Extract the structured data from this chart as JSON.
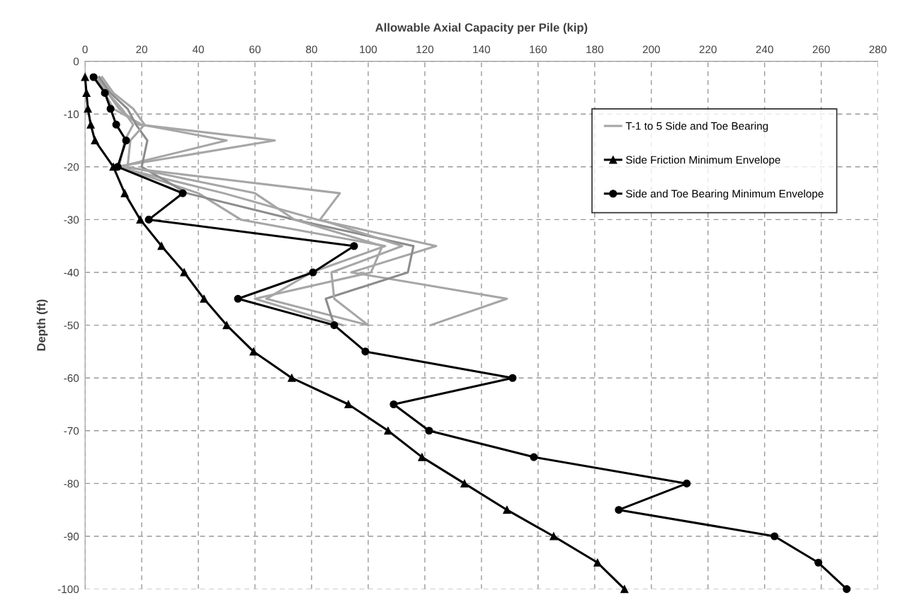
{
  "chart_data": {
    "type": "line",
    "xlabel": "Allowable Axial Capacity per Pile (kip)",
    "ylabel": "Depth (ft)",
    "xlim": [
      0,
      280
    ],
    "xticks": [
      0,
      20,
      40,
      60,
      80,
      100,
      120,
      140,
      160,
      180,
      200,
      220,
      240,
      260,
      280
    ],
    "ylim": [
      -100,
      0
    ],
    "yticks": [
      -100,
      -90,
      -80,
      -70,
      -60,
      -50,
      -40,
      -30,
      -20,
      -10,
      0
    ],
    "grid": true,
    "legend": "top right",
    "line_style": "solid",
    "series": [
      {
        "name": "T-1 to 5 Side and Toe Bearing",
        "color": "#a6a6a6",
        "marker": "none",
        "values": [
          -3,
          -6,
          -9,
          -12,
          -15,
          -20,
          -25,
          -30,
          -35,
          -40,
          -45,
          -50
        ],
        "x": [
          5,
          8,
          12,
          19,
          67,
          11,
          49,
          82,
          124,
          94,
          149,
          122
        ]
      },
      {
        "color": "#a6a6a6",
        "marker": "none",
        "values": [
          -3,
          -6,
          -9,
          -12,
          -15,
          -20,
          -25,
          -30,
          -35,
          -40,
          -45,
          -50
        ],
        "x": [
          4,
          7,
          10,
          20,
          50,
          12,
          40,
          55,
          106,
          80,
          64,
          100
        ]
      },
      {
        "color": "#8c8c8c",
        "marker": "none",
        "values": [
          -3,
          -6,
          -9,
          -12,
          -15,
          -20,
          -25,
          -30,
          -35,
          -40,
          -45,
          -50
        ],
        "x": [
          5,
          9,
          15,
          18,
          22,
          20,
          36,
          74,
          116,
          114,
          85,
          88
        ]
      },
      {
        "color": "#a6a6a6",
        "marker": "none",
        "values": [
          -3,
          -6,
          -9,
          -12,
          -15,
          -20,
          -25,
          -30,
          -35,
          -40,
          -45,
          -50
        ],
        "x": [
          6,
          10,
          17,
          21,
          16,
          15,
          60,
          74,
          105,
          101,
          60,
          91
        ]
      },
      {
        "color": "#a6a6a6",
        "marker": "none",
        "values": [
          -3,
          -6,
          -9,
          -12,
          -15,
          -20,
          -25,
          -30,
          -35,
          -40,
          -45,
          -50
        ],
        "x": [
          4,
          8,
          13,
          17,
          14,
          12,
          90,
          83,
          112,
          87,
          88,
          100
        ]
      },
      {
        "name": "Side Friction Minimum Envelope",
        "color": "#000000",
        "marker": "triangle",
        "values": [
          -3,
          -6,
          -9,
          -12,
          -15,
          -20,
          -25,
          -30,
          -35,
          -40,
          -45,
          -50,
          -55,
          -60,
          -65,
          -70,
          -75,
          -80,
          -85,
          -90,
          -95,
          -100
        ],
        "x": [
          0,
          0.5,
          1,
          2,
          3.5,
          10,
          14,
          19.5,
          27,
          35,
          42,
          50,
          59.5,
          73,
          93,
          107,
          119,
          134,
          149,
          165.5,
          181,
          190.5
        ]
      },
      {
        "name": "Side and Toe Bearing Minimum Envelope",
        "color": "#000000",
        "marker": "circle",
        "values": [
          -3,
          -6,
          -9,
          -12,
          -15,
          -20,
          -25,
          -30,
          -35,
          -40,
          -45,
          -50,
          -55,
          -60,
          -65,
          -70,
          -75,
          -80,
          -85,
          -90,
          -95,
          -100
        ],
        "x": [
          3,
          7,
          9,
          11,
          14.5,
          11.5,
          34.5,
          22.5,
          95,
          80.5,
          54,
          88,
          99,
          151,
          109,
          121.5,
          158.5,
          212.5,
          188.5,
          243.5,
          259,
          269
        ]
      }
    ]
  }
}
